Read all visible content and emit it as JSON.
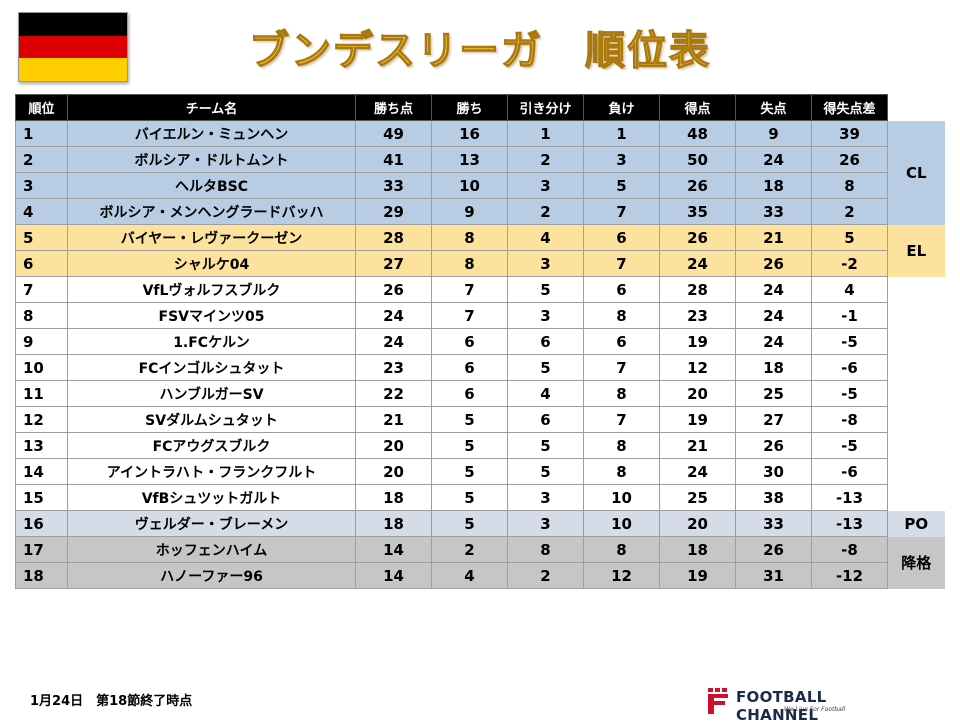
{
  "title": "ブンデスリーガ　順位表",
  "flag": {
    "colors": [
      "#000000",
      "#dd0000",
      "#ffce00"
    ]
  },
  "colors": {
    "cl": "#b8cde4",
    "el": "#fde29d",
    "po": "#d5dce8",
    "relegation": "#c6c6c6",
    "header": "#000000",
    "title": "#f5c43c"
  },
  "columns": [
    "順位",
    "チーム名",
    "勝ち点",
    "勝ち",
    "引き分け",
    "負け",
    "得点",
    "失点",
    "得失点差"
  ],
  "rows": [
    {
      "rank": "1",
      "team": "バイエルン・ミュンヘン",
      "pts": "49",
      "w": "16",
      "d": "1",
      "l": "1",
      "gf": "48",
      "ga": "9",
      "gd": "39",
      "zone": "cl"
    },
    {
      "rank": "2",
      "team": "ボルシア・ドルトムント",
      "pts": "41",
      "w": "13",
      "d": "2",
      "l": "3",
      "gf": "50",
      "ga": "24",
      "gd": "26",
      "zone": "cl"
    },
    {
      "rank": "3",
      "team": "ヘルタBSC",
      "pts": "33",
      "w": "10",
      "d": "3",
      "l": "5",
      "gf": "26",
      "ga": "18",
      "gd": "8",
      "zone": "cl"
    },
    {
      "rank": "4",
      "team": "ボルシア・メンヘングラードバッハ",
      "pts": "29",
      "w": "9",
      "d": "2",
      "l": "7",
      "gf": "35",
      "ga": "33",
      "gd": "2",
      "zone": "cl"
    },
    {
      "rank": "5",
      "team": "バイヤー・レヴァークーゼン",
      "pts": "28",
      "w": "8",
      "d": "4",
      "l": "6",
      "gf": "26",
      "ga": "21",
      "gd": "5",
      "zone": "el"
    },
    {
      "rank": "6",
      "team": "シャルケ04",
      "pts": "27",
      "w": "8",
      "d": "3",
      "l": "7",
      "gf": "24",
      "ga": "26",
      "gd": "-2",
      "zone": "el"
    },
    {
      "rank": "7",
      "team": "VfLヴォルフスブルク",
      "pts": "26",
      "w": "7",
      "d": "5",
      "l": "6",
      "gf": "28",
      "ga": "24",
      "gd": "4",
      "zone": ""
    },
    {
      "rank": "8",
      "team": "FSVマインツ05",
      "pts": "24",
      "w": "7",
      "d": "3",
      "l": "8",
      "gf": "23",
      "ga": "24",
      "gd": "-1",
      "zone": ""
    },
    {
      "rank": "9",
      "team": "1.FCケルン",
      "pts": "24",
      "w": "6",
      "d": "6",
      "l": "6",
      "gf": "19",
      "ga": "24",
      "gd": "-5",
      "zone": ""
    },
    {
      "rank": "10",
      "team": "FCインゴルシュタット",
      "pts": "23",
      "w": "6",
      "d": "5",
      "l": "7",
      "gf": "12",
      "ga": "18",
      "gd": "-6",
      "zone": ""
    },
    {
      "rank": "11",
      "team": "ハンブルガーSV",
      "pts": "22",
      "w": "6",
      "d": "4",
      "l": "8",
      "gf": "20",
      "ga": "25",
      "gd": "-5",
      "zone": ""
    },
    {
      "rank": "12",
      "team": "SVダルムシュタット",
      "pts": "21",
      "w": "5",
      "d": "6",
      "l": "7",
      "gf": "19",
      "ga": "27",
      "gd": "-8",
      "zone": ""
    },
    {
      "rank": "13",
      "team": "FCアウグスブルク",
      "pts": "20",
      "w": "5",
      "d": "5",
      "l": "8",
      "gf": "21",
      "ga": "26",
      "gd": "-5",
      "zone": ""
    },
    {
      "rank": "14",
      "team": "アイントラハト・フランクフルト",
      "pts": "20",
      "w": "5",
      "d": "5",
      "l": "8",
      "gf": "24",
      "ga": "30",
      "gd": "-6",
      "zone": ""
    },
    {
      "rank": "15",
      "team": "VfBシュツットガルト",
      "pts": "18",
      "w": "5",
      "d": "3",
      "l": "10",
      "gf": "25",
      "ga": "38",
      "gd": "-13",
      "zone": ""
    },
    {
      "rank": "16",
      "team": "ヴェルダー・ブレーメン",
      "pts": "18",
      "w": "5",
      "d": "3",
      "l": "10",
      "gf": "20",
      "ga": "33",
      "gd": "-13",
      "zone": "po"
    },
    {
      "rank": "17",
      "team": "ホッフェンハイム",
      "pts": "14",
      "w": "2",
      "d": "8",
      "l": "8",
      "gf": "18",
      "ga": "26",
      "gd": "-8",
      "zone": "relegation"
    },
    {
      "rank": "18",
      "team": "ハノーファー96",
      "pts": "14",
      "w": "4",
      "d": "2",
      "l": "12",
      "gf": "19",
      "ga": "31",
      "gd": "-12",
      "zone": "relegation"
    }
  ],
  "zone_labels": {
    "cl": "CL",
    "el": "EL",
    "po": "PO",
    "relegation": "降格"
  },
  "footer": {
    "date": "1月24日　第18節終了時点",
    "brand": "FOOTBALL CHANNEL",
    "tagline": "We Live For Football"
  }
}
